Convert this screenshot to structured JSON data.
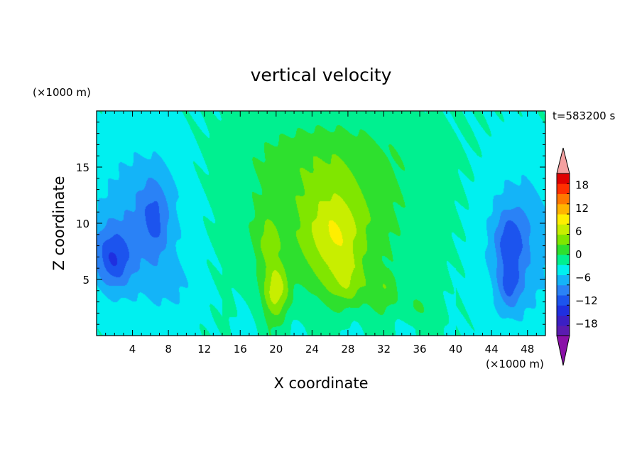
{
  "chart_data": {
    "type": "heatmap",
    "title": "vertical velocity",
    "xlabel": "X coordinate",
    "ylabel": "Z coordinate",
    "x_unit": "(×1000 m)",
    "y_unit": "(×1000 m)",
    "time_label": "t=583200 s",
    "xlim": [
      0,
      50
    ],
    "ylim": [
      0,
      20
    ],
    "x_ticks": [
      4,
      8,
      12,
      16,
      20,
      24,
      28,
      32,
      36,
      40,
      44,
      48
    ],
    "y_ticks": [
      5,
      10,
      15
    ],
    "colorbar": {
      "levels": [
        -21,
        -18,
        -15,
        -12,
        -9,
        -6,
        -3,
        0,
        3,
        6,
        9,
        12,
        15,
        18,
        21
      ],
      "tick_labels": [
        "18",
        "12",
        "6",
        "0",
        "−6",
        "−12",
        "−18"
      ],
      "tick_values": [
        18,
        12,
        6,
        0,
        -6,
        -12,
        -18
      ],
      "colors": [
        "#5a1bb0",
        "#3b1fc4",
        "#1f2fe0",
        "#1c54ee",
        "#2a82f6",
        "#14b4f8",
        "#00f0f0",
        "#00f090",
        "#2ee02e",
        "#80e600",
        "#c8ee00",
        "#ffee00",
        "#ffb400",
        "#ff7800",
        "#ff3000",
        "#e00000"
      ],
      "under_color": "#8a10a8",
      "over_color": "#f4a0a0"
    },
    "field_features": [
      {
        "x": 6.5,
        "z": 10,
        "value": -9
      },
      {
        "x": 7,
        "z": 11,
        "value": -11
      },
      {
        "x": 2,
        "z": 6.5,
        "value": -12
      },
      {
        "x": 46,
        "z": 8.5,
        "value": -12
      },
      {
        "x": 46,
        "z": 4,
        "value": -12
      },
      {
        "x": 20,
        "z": 3.5,
        "value": 11
      },
      {
        "x": 26.5,
        "z": 8,
        "value": 13
      },
      {
        "x": 19,
        "z": 8.5,
        "value": 8
      },
      {
        "x": 28,
        "z": 4,
        "value": 8
      },
      {
        "x": 32,
        "z": 4,
        "value": 6
      }
    ]
  }
}
